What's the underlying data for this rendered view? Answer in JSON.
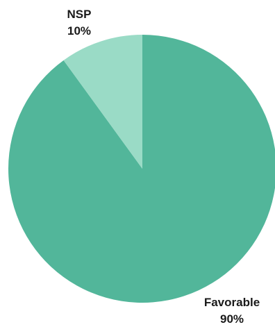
{
  "chart_data": {
    "type": "pie",
    "slices": [
      {
        "label": "Favorable",
        "value": 90,
        "value_text": "90%",
        "color": "#52b69a"
      },
      {
        "label": "NSP",
        "value": 10,
        "value_text": "10%",
        "color": "#9adbc6"
      }
    ],
    "title": "",
    "start_angle": "12 o'clock",
    "direction": "clockwise"
  }
}
